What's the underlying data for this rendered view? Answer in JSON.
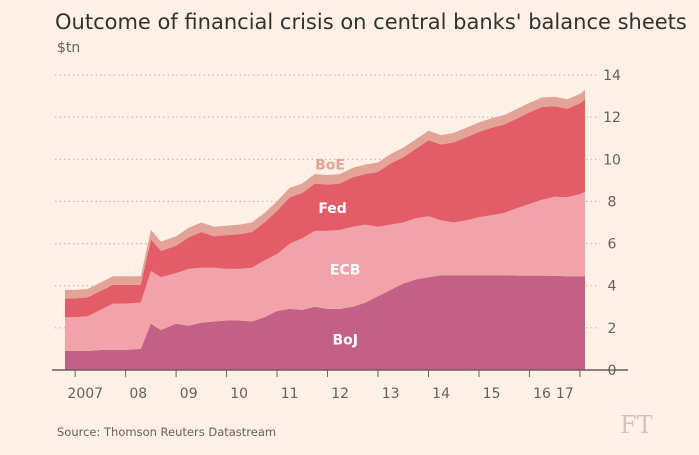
{
  "title": "Outcome of financial crisis on central banks' balance sheets",
  "unit": "$tn",
  "source": "Source: Thomson Reuters Datastream",
  "logo": "FT",
  "colors": {
    "background": "#FFF1E5",
    "boj": "#C36085",
    "ecb": "#F2A3A9",
    "fed": "#E35D69",
    "boe": "#E3A398",
    "grid": "#B7B0A8"
  },
  "chart_data": {
    "type": "area",
    "stacked": true,
    "x": [
      2006.8,
      2007.0,
      2007.25,
      2007.5,
      2007.75,
      2008.0,
      2008.3,
      2008.5,
      2008.7,
      2009.0,
      2009.25,
      2009.5,
      2009.75,
      2010.0,
      2010.25,
      2010.5,
      2010.75,
      2011.0,
      2011.25,
      2011.5,
      2011.75,
      2012.0,
      2012.25,
      2012.5,
      2012.75,
      2013.0,
      2013.25,
      2013.5,
      2013.75,
      2014.0,
      2014.25,
      2014.5,
      2014.75,
      2015.0,
      2015.25,
      2015.5,
      2015.75,
      2016.0,
      2016.25,
      2016.5,
      2016.75,
      2017.0,
      2017.1
    ],
    "x_tick_labels": [
      {
        "x": 2007.2,
        "label": "2007"
      },
      {
        "x": 2008.25,
        "label": "08"
      },
      {
        "x": 2009.25,
        "label": "09"
      },
      {
        "x": 2010.25,
        "label": "10"
      },
      {
        "x": 2011.25,
        "label": "11"
      },
      {
        "x": 2012.25,
        "label": "12"
      },
      {
        "x": 2013.25,
        "label": "13"
      },
      {
        "x": 2014.25,
        "label": "14"
      },
      {
        "x": 2015.25,
        "label": "15"
      },
      {
        "x": 2016.25,
        "label": "16"
      },
      {
        "x": 2016.7,
        "label": "17"
      }
    ],
    "series": [
      {
        "name": "BoJ",
        "color": "#C36085",
        "values": [
          0.9,
          0.9,
          0.9,
          0.95,
          0.95,
          0.95,
          1.0,
          2.2,
          1.9,
          2.2,
          2.1,
          2.25,
          2.3,
          2.35,
          2.35,
          2.3,
          2.5,
          2.8,
          2.9,
          2.85,
          3.0,
          2.9,
          2.9,
          3.0,
          3.2,
          3.5,
          3.8,
          4.1,
          4.3,
          4.4,
          4.5,
          4.5,
          4.5,
          4.5,
          4.5,
          4.5,
          4.48,
          4.48,
          4.48,
          4.47,
          4.45,
          4.45,
          4.45
        ]
      },
      {
        "name": "ECB",
        "color": "#F2A3A9",
        "values": [
          1.6,
          1.6,
          1.65,
          1.9,
          2.2,
          2.2,
          2.2,
          2.5,
          2.5,
          2.4,
          2.7,
          2.6,
          2.55,
          2.45,
          2.45,
          2.55,
          2.7,
          2.7,
          3.1,
          3.4,
          3.6,
          3.7,
          3.75,
          3.8,
          3.7,
          3.3,
          3.1,
          2.9,
          2.9,
          2.9,
          2.6,
          2.5,
          2.6,
          2.75,
          2.85,
          2.95,
          3.2,
          3.4,
          3.6,
          3.75,
          3.75,
          3.9,
          4.0
        ]
      },
      {
        "name": "Fed",
        "color": "#E35D69",
        "values": [
          0.9,
          0.9,
          0.9,
          0.9,
          0.9,
          0.9,
          0.85,
          1.5,
          1.25,
          1.3,
          1.5,
          1.7,
          1.5,
          1.6,
          1.65,
          1.7,
          1.8,
          2.05,
          2.2,
          2.15,
          2.25,
          2.2,
          2.2,
          2.35,
          2.4,
          2.6,
          2.9,
          3.1,
          3.3,
          3.6,
          3.6,
          3.8,
          3.95,
          4.05,
          4.15,
          4.2,
          4.25,
          4.35,
          4.4,
          4.3,
          4.2,
          4.3,
          4.4
        ]
      },
      {
        "name": "BoE",
        "color": "#E3A398",
        "values": [
          0.4,
          0.4,
          0.4,
          0.4,
          0.4,
          0.4,
          0.4,
          0.45,
          0.45,
          0.45,
          0.45,
          0.45,
          0.45,
          0.45,
          0.45,
          0.45,
          0.45,
          0.45,
          0.45,
          0.45,
          0.45,
          0.45,
          0.45,
          0.45,
          0.45,
          0.45,
          0.45,
          0.45,
          0.45,
          0.45,
          0.45,
          0.45,
          0.45,
          0.45,
          0.45,
          0.45,
          0.45,
          0.45,
          0.45,
          0.45,
          0.45,
          0.45,
          0.45
        ]
      }
    ],
    "series_labels": [
      "BoJ",
      "ECB",
      "Fed",
      "BoE"
    ],
    "xlim": [
      2006.7,
      2017.2
    ],
    "ylim": [
      0,
      14
    ],
    "yticks": [
      0,
      2,
      4,
      6,
      8,
      10,
      12,
      14
    ],
    "ytick_labels": [
      "0",
      "2",
      "4",
      "6",
      "8",
      "10",
      "12",
      "14"
    ],
    "y_axis_position": "right",
    "grid": true
  }
}
